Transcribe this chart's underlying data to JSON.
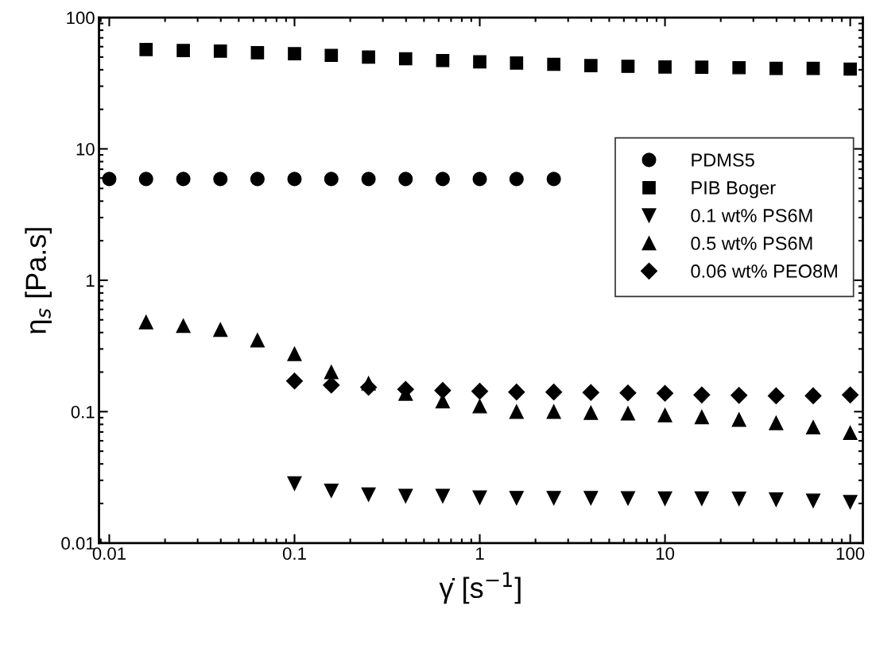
{
  "chart_data": {
    "type": "scatter",
    "xlabel": "γ̇ [s$^{−1}$]",
    "ylabel": "η$_{s}$ [Pa.s]",
    "log": "xy",
    "xlim": [
      0.0088,
      117
    ],
    "ylim": [
      0.01,
      100
    ],
    "xticks": [
      0.01,
      0.1,
      1,
      10,
      100
    ],
    "yticks": [
      0.01,
      0.1,
      1,
      10,
      100
    ],
    "grid": false,
    "legend": "right",
    "series": [
      {
        "name": "PDMS5",
        "color": "#000000",
        "marker": "circle",
        "x": [
          0.01,
          0.0158,
          0.0251,
          0.0398,
          0.0631,
          0.1,
          0.158,
          0.251,
          0.398,
          0.631,
          1,
          1.58,
          2.51
        ],
        "values": [
          5.9,
          5.9,
          5.9,
          5.9,
          5.9,
          5.9,
          5.9,
          5.9,
          5.9,
          5.9,
          5.9,
          5.9,
          5.9
        ]
      },
      {
        "name": "PIB Boger",
        "color": "#000000",
        "marker": "square",
        "x": [
          0.0158,
          0.0251,
          0.0398,
          0.0631,
          0.1,
          0.158,
          0.251,
          0.398,
          0.631,
          1,
          1.58,
          2.51,
          3.98,
          6.31,
          10,
          15.8,
          25.1,
          39.8,
          63.1,
          100
        ],
        "values": [
          57,
          56,
          55.5,
          54,
          53,
          51.5,
          50,
          48.5,
          47,
          46,
          45,
          44,
          43,
          42.5,
          42,
          41.8,
          41.5,
          41,
          41,
          40.5
        ]
      },
      {
        "name": "0.1 wt% PS6M",
        "color": "#000000",
        "marker": "triangle_down",
        "x": [
          0.1,
          0.158,
          0.251,
          0.398,
          0.631,
          1,
          1.58,
          2.51,
          3.98,
          6.31,
          10,
          15.8,
          25.1,
          39.8,
          63.1,
          100
        ],
        "values": [
          0.0284,
          0.025,
          0.0234,
          0.0228,
          0.0228,
          0.0222,
          0.022,
          0.022,
          0.022,
          0.0219,
          0.0218,
          0.0218,
          0.0217,
          0.0214,
          0.021,
          0.0205
        ]
      },
      {
        "name": "0.5 wt% PS6M",
        "color": "#000000",
        "marker": "triangle",
        "x": [
          0.0158,
          0.0251,
          0.0398,
          0.0631,
          0.1,
          0.158,
          0.251,
          0.398,
          0.631,
          1,
          1.58,
          2.51,
          3.98,
          6.31,
          10,
          15.8,
          25.1,
          39.8,
          63.1,
          100
        ],
        "values": [
          0.48,
          0.45,
          0.42,
          0.35,
          0.275,
          0.2,
          0.164,
          0.137,
          0.12,
          0.11,
          0.1,
          0.1,
          0.098,
          0.097,
          0.094,
          0.091,
          0.087,
          0.082,
          0.076,
          0.069
        ]
      },
      {
        "name": "0.06 wt% PEO8M",
        "color": "#000000",
        "marker": "diamond",
        "x": [
          0.1,
          0.158,
          0.251,
          0.398,
          0.631,
          1,
          1.58,
          2.51,
          3.98,
          6.31,
          10,
          15.8,
          25.1,
          39.8,
          63.1,
          100
        ],
        "values": [
          0.171,
          0.159,
          0.153,
          0.148,
          0.145,
          0.143,
          0.141,
          0.141,
          0.14,
          0.139,
          0.138,
          0.134,
          0.133,
          0.132,
          0.132,
          0.134
        ]
      }
    ]
  }
}
